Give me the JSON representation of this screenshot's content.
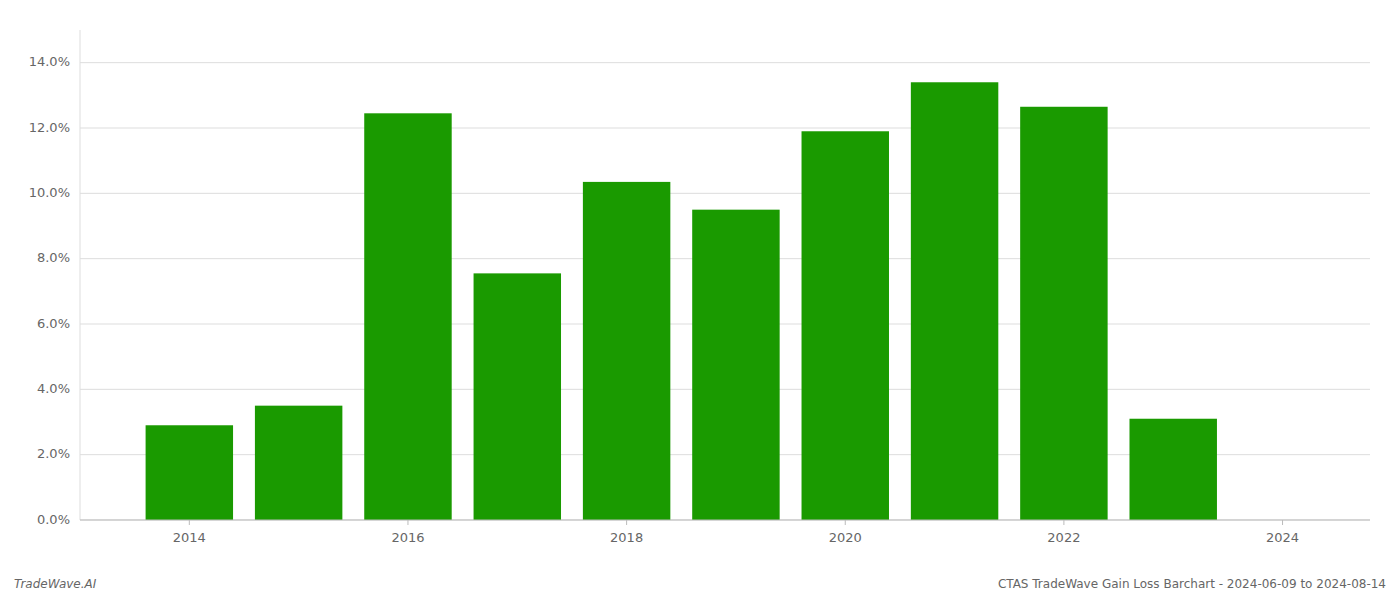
{
  "chart_data": {
    "type": "bar",
    "title": "CTAS TradeWave Gain Loss Barchart - 2024-06-09 to 2024-08-14",
    "annotations": [
      "TradeWave.AI"
    ],
    "x": [
      2014,
      2015,
      2016,
      2017,
      2018,
      2019,
      2020,
      2021,
      2022,
      2023
    ],
    "values": [
      0.029,
      0.035,
      0.1245,
      0.0755,
      0.1035,
      0.095,
      0.119,
      0.134,
      0.1265,
      0.031
    ],
    "color": "#1a9a00",
    "xlim": [
      2013.0,
      2024.8
    ],
    "xticks": [
      2014,
      2016,
      2018,
      2020,
      2022,
      2024
    ],
    "ylim": [
      0,
      0.15
    ],
    "yticks": [
      {
        "value": 0.0,
        "label": "0.0%"
      },
      {
        "value": 0.02,
        "label": "2.0%"
      },
      {
        "value": 0.04,
        "label": "4.0%"
      },
      {
        "value": 0.06,
        "label": "6.0%"
      },
      {
        "value": 0.08,
        "label": "8.0%"
      },
      {
        "value": 0.1,
        "label": "10.0%"
      },
      {
        "value": 0.12,
        "label": "12.0%"
      },
      {
        "value": 0.14,
        "label": "14.0%"
      }
    ],
    "grid": true
  }
}
